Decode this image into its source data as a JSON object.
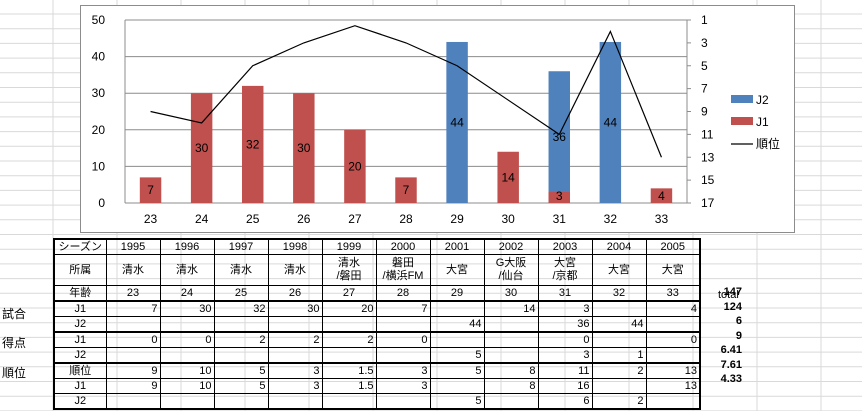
{
  "chart_data": {
    "type": "bar",
    "categories": [
      "23",
      "24",
      "25",
      "26",
      "27",
      "28",
      "29",
      "30",
      "31",
      "32",
      "33"
    ],
    "y_left_range": [
      0,
      50
    ],
    "y_left_ticks": [
      0,
      10,
      20,
      30,
      40,
      50
    ],
    "y_right_range": [
      1,
      17
    ],
    "y_right_ticks": [
      1,
      3,
      5,
      7,
      9,
      11,
      13,
      15,
      17
    ],
    "y_right_inverted": true,
    "series": [
      {
        "name": "J2",
        "color": "#4f81bd",
        "values": [
          null,
          null,
          null,
          null,
          null,
          null,
          44,
          null,
          36,
          44,
          null
        ],
        "labels": [
          "",
          "",
          "",
          "",
          "",
          "",
          "44",
          "",
          "36",
          "44",
          ""
        ]
      },
      {
        "name": "J1",
        "color": "#c0504d",
        "values": [
          7,
          30,
          32,
          30,
          20,
          7,
          null,
          14,
          3,
          null,
          4
        ],
        "labels": [
          "7",
          "30",
          "32",
          "30",
          "20",
          "7",
          "",
          "14",
          "3",
          "",
          "4"
        ]
      },
      {
        "name": "順位",
        "color": "#000000",
        "type": "line",
        "axis": "right",
        "values": [
          9,
          10,
          5,
          3,
          1.5,
          3,
          5,
          8,
          11,
          2,
          13
        ]
      }
    ],
    "legend_position": "right"
  },
  "table": {
    "header_label": "シーズン",
    "years": [
      "1995",
      "1996",
      "1997",
      "1998",
      "1999",
      "2000",
      "2001",
      "2002",
      "2003",
      "2004",
      "2005"
    ],
    "club_label": "所属",
    "clubs": [
      [
        "清水"
      ],
      [
        "清水"
      ],
      [
        "清水"
      ],
      [
        "清水"
      ],
      [
        "清水",
        "/磐田"
      ],
      [
        "磐田",
        "/横浜FM"
      ],
      [
        "大宮"
      ],
      [
        "G大阪",
        "/仙台"
      ],
      [
        "大宮",
        "/京都"
      ],
      [
        "大宮"
      ],
      [
        "大宮"
      ]
    ],
    "age_label": "年齢",
    "ages": [
      "23",
      "24",
      "25",
      "26",
      "27",
      "28",
      "29",
      "30",
      "31",
      "32",
      "33"
    ],
    "rows": [
      {
        "label": "J1",
        "values": [
          "7",
          "30",
          "32",
          "30",
          "20",
          "7",
          "",
          "14",
          "3",
          "",
          "4"
        ]
      },
      {
        "label": "J2",
        "values": [
          "",
          "",
          "",
          "",
          "",
          "",
          "44",
          "",
          "36",
          "44",
          ""
        ]
      },
      {
        "label": "J1",
        "values": [
          "0",
          "0",
          "2",
          "2",
          "2",
          "0",
          "",
          "",
          "0",
          "",
          "0"
        ]
      },
      {
        "label": "J2",
        "values": [
          "",
          "",
          "",
          "",
          "",
          "",
          "5",
          "",
          "3",
          "1",
          ""
        ]
      },
      {
        "label": "順位",
        "values": [
          "9",
          "10",
          "5",
          "3",
          "1.5",
          "3",
          "5",
          "8",
          "11",
          "2",
          "13"
        ]
      },
      {
        "label": "J1",
        "values": [
          "9",
          "10",
          "5",
          "3",
          "1.5",
          "3",
          "",
          "8",
          "16",
          "",
          "13"
        ]
      },
      {
        "label": "J2",
        "values": [
          "",
          "",
          "",
          "",
          "",
          "",
          "5",
          "",
          "6",
          "2",
          ""
        ]
      }
    ],
    "side_labels": {
      "matches": "試合",
      "goals": "得点",
      "rank": "順位"
    },
    "total_label": "total",
    "totals": [
      "147",
      "124",
      "6",
      "9",
      "6.41",
      "7.61",
      "4.33"
    ]
  }
}
